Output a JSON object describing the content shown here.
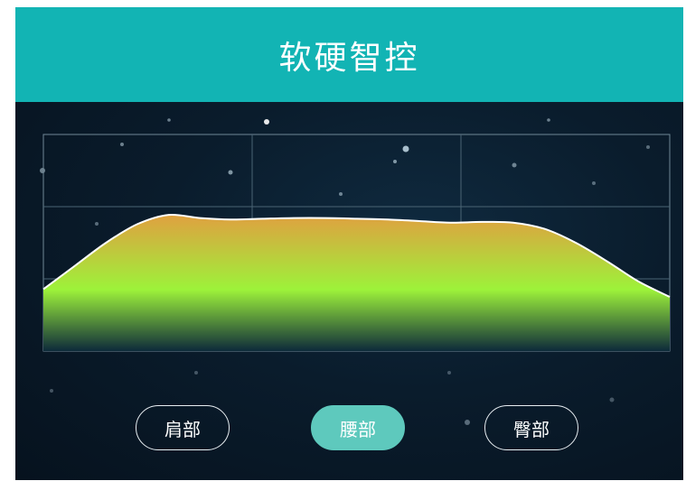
{
  "header": {
    "title": "软硬智控"
  },
  "chart_data": {
    "type": "area",
    "title": "",
    "xlabel": "",
    "ylabel": "",
    "grid": true,
    "x": [
      0,
      5,
      10,
      15,
      20,
      25,
      30,
      35,
      40,
      45,
      50,
      55,
      60,
      65,
      70,
      75,
      80,
      85,
      90,
      95,
      100
    ],
    "y": [
      40,
      55,
      70,
      82,
      88,
      86,
      85,
      85.5,
      86,
      86,
      85.5,
      85,
      84,
      83,
      83.5,
      83,
      79,
      70,
      58,
      45,
      35
    ],
    "xlim": [
      0,
      100
    ],
    "ylim": [
      0,
      140
    ],
    "colors": {
      "top": "#e0a040",
      "middle": "#9df23a",
      "bottom": "#0d2a3a",
      "outline": "#ffffff"
    }
  },
  "zones": {
    "active": "waist",
    "items": [
      {
        "id": "shoulder",
        "label": "肩部"
      },
      {
        "id": "waist",
        "label": "腰部"
      },
      {
        "id": "hip",
        "label": "臀部"
      }
    ]
  },
  "colors": {
    "header_bg": "#12b4b4",
    "active_button": "#5ec9bd"
  }
}
